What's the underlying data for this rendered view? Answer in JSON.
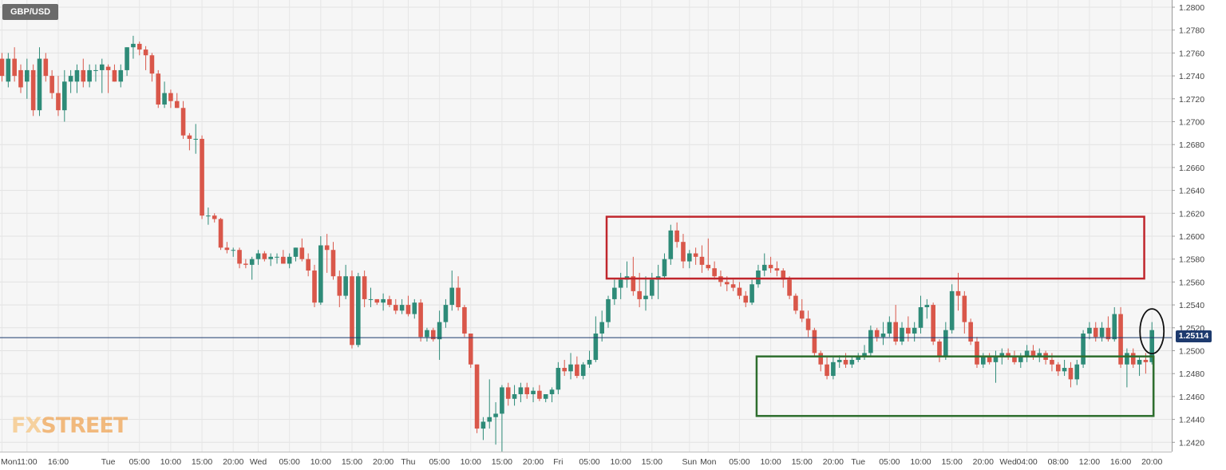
{
  "symbol": "GBP/USD",
  "logo": {
    "prefix": "FX",
    "suffix": "STREET"
  },
  "current_price": "1.25114",
  "colors": {
    "up": "#2e8b78",
    "down": "#d9574a",
    "resistance_box": "#c0272d",
    "support_box": "#2e6e2e",
    "price_line": "#1d3a6e",
    "highlight_circle": "#111111"
  },
  "chart_data": {
    "type": "candlestick",
    "title": "GBP/USD",
    "xlabel": "",
    "ylabel": "",
    "ylim": [
      1.241,
      1.2805
    ],
    "y_ticks": [
      "1.2800",
      "1.2780",
      "1.2760",
      "1.2740",
      "1.2720",
      "1.2700",
      "1.2680",
      "1.2660",
      "1.2640",
      "1.2620",
      "1.2600",
      "1.2580",
      "1.2560",
      "1.2540",
      "1.2520",
      "1.2500",
      "1.2480",
      "1.2460",
      "1.2440",
      "1.2420"
    ],
    "x_ticks": [
      "Mon",
      "11:00",
      "16:00",
      "Tue",
      "05:00",
      "10:00",
      "15:00",
      "20:00",
      "Wed",
      "05:00",
      "10:00",
      "15:00",
      "20:00",
      "Thu",
      "05:00",
      "10:00",
      "15:00",
      "20:00",
      "Fri",
      "05:00",
      "10:00",
      "15:00",
      "Sun",
      "Mon",
      "05:00",
      "10:00",
      "15:00",
      "20:00",
      "Tue",
      "05:00",
      "10:00",
      "15:00",
      "20:00",
      "Wed",
      "04:00",
      "08:00",
      "12:00",
      "16:00",
      "20:00"
    ],
    "x_tick_index": [
      0,
      4,
      9,
      17,
      22,
      27,
      32,
      37,
      41,
      46,
      51,
      56,
      61,
      65,
      70,
      75,
      80,
      85,
      89,
      94,
      99,
      104,
      110,
      113,
      118,
      123,
      128,
      133,
      137,
      142,
      147,
      152,
      157,
      161,
      164,
      169,
      174,
      179,
      184
    ],
    "current_price": 1.25114,
    "grid": true,
    "candles": [
      [
        1.2755,
        1.276,
        1.2735,
        1.274
      ],
      [
        1.2735,
        1.276,
        1.273,
        1.2755
      ],
      [
        1.2755,
        1.2765,
        1.2735,
        1.274
      ],
      [
        1.2745,
        1.275,
        1.2725,
        1.273
      ],
      [
        1.2735,
        1.2755,
        1.272,
        1.2745
      ],
      [
        1.2745,
        1.275,
        1.2705,
        1.271
      ],
      [
        1.271,
        1.2765,
        1.2705,
        1.2755
      ],
      [
        1.2755,
        1.276,
        1.2735,
        1.274
      ],
      [
        1.274,
        1.2745,
        1.272,
        1.2725
      ],
      [
        1.2725,
        1.274,
        1.2705,
        1.271
      ],
      [
        1.271,
        1.2745,
        1.27,
        1.2735
      ],
      [
        1.2735,
        1.2745,
        1.2725,
        1.274
      ],
      [
        1.2735,
        1.275,
        1.2725,
        1.2745
      ],
      [
        1.2745,
        1.2755,
        1.273,
        1.2735
      ],
      [
        1.2735,
        1.275,
        1.273,
        1.2745
      ],
      [
        1.2745,
        1.275,
        1.2735,
        1.2745
      ],
      [
        1.2745,
        1.2755,
        1.2725,
        1.275
      ],
      [
        1.2748,
        1.275,
        1.2725,
        1.2745
      ],
      [
        1.2745,
        1.275,
        1.2735,
        1.2735
      ],
      [
        1.2735,
        1.275,
        1.273,
        1.2745
      ],
      [
        1.2745,
        1.2765,
        1.274,
        1.2765
      ],
      [
        1.2765,
        1.2775,
        1.2755,
        1.2768
      ],
      [
        1.2768,
        1.277,
        1.2758,
        1.2763
      ],
      [
        1.2763,
        1.2766,
        1.2745,
        1.2758
      ],
      [
        1.2758,
        1.276,
        1.2735,
        1.2742
      ],
      [
        1.2742,
        1.2745,
        1.2712,
        1.2715
      ],
      [
        1.2715,
        1.2735,
        1.2712,
        1.2725
      ],
      [
        1.2725,
        1.2728,
        1.2712,
        1.2718
      ],
      [
        1.2718,
        1.2725,
        1.2712,
        1.2712
      ],
      [
        1.2712,
        1.2718,
        1.2685,
        1.2688
      ],
      [
        1.2688,
        1.269,
        1.2675,
        1.2685
      ],
      [
        1.2685,
        1.2698,
        1.2672,
        1.2685
      ],
      [
        1.2685,
        1.2688,
        1.2615,
        1.2618
      ],
      [
        1.2618,
        1.2625,
        1.261,
        1.2618
      ],
      [
        1.2618,
        1.262,
        1.2612,
        1.2615
      ],
      [
        1.2615,
        1.2616,
        1.2588,
        1.259
      ],
      [
        1.259,
        1.2595,
        1.2585,
        1.2588
      ],
      [
        1.2588,
        1.259,
        1.2582,
        1.2588
      ],
      [
        1.2588,
        1.259,
        1.2572,
        1.2576
      ],
      [
        1.2576,
        1.258,
        1.2572,
        1.2575
      ],
      [
        1.2575,
        1.2582,
        1.2562,
        1.258
      ],
      [
        1.258,
        1.2588,
        1.2575,
        1.2585
      ],
      [
        1.2585,
        1.2587,
        1.2578,
        1.258
      ],
      [
        1.258,
        1.2585,
        1.2574,
        1.2582
      ],
      [
        1.2582,
        1.2585,
        1.2576,
        1.2582
      ],
      [
        1.2582,
        1.2588,
        1.2576,
        1.2576
      ],
      [
        1.2576,
        1.2585,
        1.2572,
        1.2582
      ],
      [
        1.2582,
        1.259,
        1.2578,
        1.259
      ],
      [
        1.259,
        1.2598,
        1.2578,
        1.258
      ],
      [
        1.258,
        1.2585,
        1.2565,
        1.257
      ],
      [
        1.257,
        1.2575,
        1.2538,
        1.2542
      ],
      [
        1.2542,
        1.26,
        1.254,
        1.2592
      ],
      [
        1.2592,
        1.2602,
        1.2568,
        1.2588
      ],
      [
        1.2588,
        1.2595,
        1.2562,
        1.2565
      ],
      [
        1.2565,
        1.257,
        1.2538,
        1.2548
      ],
      [
        1.2548,
        1.2575,
        1.2545,
        1.2565
      ],
      [
        1.2565,
        1.257,
        1.2502,
        1.2505
      ],
      [
        1.2505,
        1.2568,
        1.2503,
        1.2565
      ],
      [
        1.2565,
        1.257,
        1.2538,
        1.2545
      ],
      [
        1.2545,
        1.2555,
        1.2538,
        1.2545
      ],
      [
        1.2545,
        1.2545,
        1.254,
        1.2542
      ],
      [
        1.2542,
        1.255,
        1.2535,
        1.2545
      ],
      [
        1.2545,
        1.2548,
        1.2538,
        1.254
      ],
      [
        1.254,
        1.2545,
        1.2532,
        1.2535
      ],
      [
        1.2535,
        1.2545,
        1.2532,
        1.254
      ],
      [
        1.254,
        1.2548,
        1.253,
        1.2532
      ],
      [
        1.2532,
        1.2545,
        1.2528,
        1.2542
      ],
      [
        1.2542,
        1.2545,
        1.2508,
        1.2512
      ],
      [
        1.2512,
        1.252,
        1.2508,
        1.2518
      ],
      [
        1.2518,
        1.252,
        1.2508,
        1.251
      ],
      [
        1.251,
        1.2535,
        1.2492,
        1.2525
      ],
      [
        1.2525,
        1.2545,
        1.252,
        1.254
      ],
      [
        1.254,
        1.257,
        1.2535,
        1.2555
      ],
      [
        1.2555,
        1.2565,
        1.2535,
        1.2538
      ],
      [
        1.2538,
        1.254,
        1.2512,
        1.2515
      ],
      [
        1.2515,
        1.2515,
        1.2485,
        1.2488
      ],
      [
        1.2488,
        1.2488,
        1.2428,
        1.2432
      ],
      [
        1.2432,
        1.2442,
        1.2422,
        1.2438
      ],
      [
        1.2438,
        1.2475,
        1.2432,
        1.2442
      ],
      [
        1.2442,
        1.2455,
        1.2418,
        1.2445
      ],
      [
        1.2445,
        1.247,
        1.2412,
        1.2468
      ],
      [
        1.2468,
        1.2472,
        1.2452,
        1.2458
      ],
      [
        1.2458,
        1.247,
        1.2452,
        1.2462
      ],
      [
        1.2462,
        1.2472,
        1.2455,
        1.2468
      ],
      [
        1.2468,
        1.2472,
        1.2458,
        1.2462
      ],
      [
        1.2462,
        1.2468,
        1.2455,
        1.2465
      ],
      [
        1.2465,
        1.247,
        1.2456,
        1.2458
      ],
      [
        1.2458,
        1.2462,
        1.2455,
        1.2462
      ],
      [
        1.2462,
        1.2468,
        1.2455,
        1.2466
      ],
      [
        1.2466,
        1.249,
        1.2462,
        1.2485
      ],
      [
        1.2485,
        1.2492,
        1.2478,
        1.2482
      ],
      [
        1.2482,
        1.2498,
        1.2475,
        1.2488
      ],
      [
        1.2488,
        1.2495,
        1.2476,
        1.2478
      ],
      [
        1.2478,
        1.249,
        1.2475,
        1.2488
      ],
      [
        1.2488,
        1.25,
        1.2485,
        1.2492
      ],
      [
        1.2492,
        1.253,
        1.249,
        1.2515
      ],
      [
        1.2515,
        1.2535,
        1.2508,
        1.2525
      ],
      [
        1.2525,
        1.2548,
        1.252,
        1.2545
      ],
      [
        1.2545,
        1.2562,
        1.254,
        1.2555
      ],
      [
        1.2555,
        1.2568,
        1.2545,
        1.2562
      ],
      [
        1.2562,
        1.2578,
        1.2555,
        1.2565
      ],
      [
        1.2565,
        1.2582,
        1.2548,
        1.2552
      ],
      [
        1.2552,
        1.2568,
        1.2538,
        1.2545
      ],
      [
        1.2545,
        1.2565,
        1.2535,
        1.2548
      ],
      [
        1.2548,
        1.2568,
        1.2545,
        1.2562
      ],
      [
        1.2562,
        1.2575,
        1.2545,
        1.2565
      ],
      [
        1.2565,
        1.2585,
        1.2562,
        1.258
      ],
      [
        1.258,
        1.261,
        1.2575,
        1.2605
      ],
      [
        1.2605,
        1.2612,
        1.259,
        1.2595
      ],
      [
        1.2595,
        1.2602,
        1.2572,
        1.2578
      ],
      [
        1.2578,
        1.2588,
        1.2572,
        1.2585
      ],
      [
        1.2585,
        1.259,
        1.2575,
        1.2582
      ],
      [
        1.2582,
        1.2592,
        1.2568,
        1.2575
      ],
      [
        1.2575,
        1.2598,
        1.257,
        1.2572
      ],
      [
        1.2572,
        1.2578,
        1.2562,
        1.2565
      ],
      [
        1.2565,
        1.257,
        1.2556,
        1.256
      ],
      [
        1.256,
        1.2565,
        1.2552,
        1.2558
      ],
      [
        1.2558,
        1.2562,
        1.2552,
        1.2555
      ],
      [
        1.2555,
        1.256,
        1.2545,
        1.2548
      ],
      [
        1.2548,
        1.2552,
        1.2538,
        1.2542
      ],
      [
        1.2542,
        1.2562,
        1.254,
        1.2558
      ],
      [
        1.2558,
        1.2575,
        1.2555,
        1.257
      ],
      [
        1.257,
        1.2585,
        1.2565,
        1.2575
      ],
      [
        1.2575,
        1.2582,
        1.2568,
        1.2572
      ],
      [
        1.2572,
        1.2578,
        1.2565,
        1.257
      ],
      [
        1.257,
        1.2572,
        1.2555,
        1.2562
      ],
      [
        1.2562,
        1.2565,
        1.2545,
        1.2548
      ],
      [
        1.2548,
        1.255,
        1.2532,
        1.2535
      ],
      [
        1.2535,
        1.2545,
        1.2525,
        1.2528
      ],
      [
        1.2528,
        1.2535,
        1.2512,
        1.2518
      ],
      [
        1.2518,
        1.252,
        1.2495,
        1.2498
      ],
      [
        1.2498,
        1.25,
        1.2482,
        1.2488
      ],
      [
        1.2488,
        1.2495,
        1.2475,
        1.2478
      ],
      [
        1.2478,
        1.2495,
        1.2475,
        1.249
      ],
      [
        1.249,
        1.2496,
        1.2485,
        1.2492
      ],
      [
        1.2492,
        1.2498,
        1.2485,
        1.2488
      ],
      [
        1.2488,
        1.2495,
        1.2485,
        1.2492
      ],
      [
        1.2492,
        1.2498,
        1.249,
        1.2495
      ],
      [
        1.2495,
        1.2505,
        1.2492,
        1.2498
      ],
      [
        1.2498,
        1.2522,
        1.2495,
        1.2518
      ],
      [
        1.2518,
        1.252,
        1.2508,
        1.2512
      ],
      [
        1.2512,
        1.2525,
        1.2505,
        1.2515
      ],
      [
        1.2515,
        1.253,
        1.2512,
        1.2525
      ],
      [
        1.2525,
        1.254,
        1.2505,
        1.2508
      ],
      [
        1.2508,
        1.2525,
        1.2505,
        1.252
      ],
      [
        1.252,
        1.253,
        1.2508,
        1.2515
      ],
      [
        1.2515,
        1.2525,
        1.2508,
        1.252
      ],
      [
        1.252,
        1.2548,
        1.2515,
        1.2538
      ],
      [
        1.2538,
        1.2545,
        1.2528,
        1.254
      ],
      [
        1.254,
        1.2542,
        1.2505,
        1.2508
      ],
      [
        1.2508,
        1.251,
        1.249,
        1.2495
      ],
      [
        1.2495,
        1.2525,
        1.2492,
        1.2518
      ],
      [
        1.2518,
        1.2558,
        1.2515,
        1.2552
      ],
      [
        1.2552,
        1.2568,
        1.2535,
        1.2548
      ],
      [
        1.2548,
        1.2552,
        1.2515,
        1.2525
      ],
      [
        1.2525,
        1.2528,
        1.2505,
        1.2508
      ],
      [
        1.2508,
        1.2512,
        1.2485,
        1.2488
      ],
      [
        1.2488,
        1.2498,
        1.2485,
        1.2495
      ],
      [
        1.2495,
        1.2498,
        1.2488,
        1.249
      ],
      [
        1.249,
        1.25,
        1.2472,
        1.2495
      ],
      [
        1.2495,
        1.2502,
        1.2488,
        1.2498
      ],
      [
        1.2498,
        1.2502,
        1.2492,
        1.2495
      ],
      [
        1.2495,
        1.25,
        1.2488,
        1.249
      ],
      [
        1.249,
        1.2498,
        1.2485,
        1.2495
      ],
      [
        1.2495,
        1.2505,
        1.249,
        1.25
      ],
      [
        1.25,
        1.2505,
        1.2492,
        1.2495
      ],
      [
        1.2495,
        1.2502,
        1.249,
        1.2498
      ],
      [
        1.2498,
        1.25,
        1.2488,
        1.2492
      ],
      [
        1.2492,
        1.2498,
        1.2482,
        1.2488
      ],
      [
        1.2488,
        1.249,
        1.2478,
        1.2482
      ],
      [
        1.2482,
        1.2492,
        1.2478,
        1.2485
      ],
      [
        1.2485,
        1.249,
        1.2468,
        1.2475
      ],
      [
        1.2475,
        1.2492,
        1.247,
        1.2488
      ],
      [
        1.2488,
        1.2518,
        1.2485,
        1.2515
      ],
      [
        1.2515,
        1.2525,
        1.251,
        1.252
      ],
      [
        1.252,
        1.2525,
        1.2508,
        1.2512
      ],
      [
        1.2512,
        1.2525,
        1.2508,
        1.252
      ],
      [
        1.252,
        1.253,
        1.2508,
        1.251
      ],
      [
        1.251,
        1.2538,
        1.2508,
        1.2532
      ],
      [
        1.2532,
        1.2538,
        1.2485,
        1.2488
      ],
      [
        1.2488,
        1.2502,
        1.2468,
        1.2498
      ],
      [
        1.2498,
        1.2502,
        1.2485,
        1.2488
      ],
      [
        1.2488,
        1.2495,
        1.2478,
        1.2492
      ],
      [
        1.2492,
        1.2498,
        1.248,
        1.249
      ],
      [
        1.249,
        1.2525,
        1.2488,
        1.2518
      ]
    ]
  },
  "annotations": {
    "resistance_zone": [
      1.2563,
      1.2617
    ],
    "resistance_index": [
      97,
      182
    ],
    "support_zone": [
      1.2443,
      1.2495
    ],
    "support_index": [
      121,
      184
    ],
    "highlight_index": 184,
    "highlight_price": 1.2517
  }
}
